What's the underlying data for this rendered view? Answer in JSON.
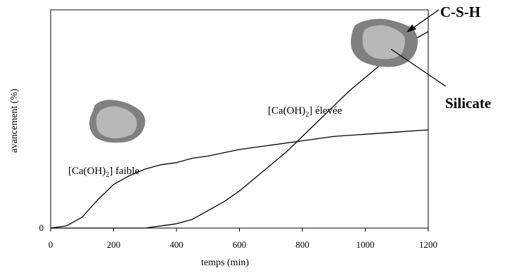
{
  "chart_data": {
    "type": "line",
    "title": "",
    "xlabel": "temps (min)",
    "ylabel": "avancement (%)",
    "xlim": [
      0,
      1200
    ],
    "ylim": [
      0,
      100
    ],
    "x_ticks": [
      "0",
      "200",
      "400",
      "600",
      "800",
      "1000",
      "1200"
    ],
    "y_ticks": [
      "0"
    ],
    "grid": false,
    "series": [
      {
        "name": "[Ca(OH)2] faible",
        "x": [
          0,
          50,
          100,
          150,
          200,
          250,
          300,
          350,
          400,
          450,
          500,
          600,
          700,
          800,
          900,
          1000,
          1100,
          1200
        ],
        "y": [
          0,
          1,
          5,
          13,
          20,
          24,
          27,
          29,
          30,
          32,
          33,
          36,
          38,
          40,
          42,
          43,
          44,
          45
        ]
      },
      {
        "name": "[Ca(OH)2] élevée",
        "x": [
          0,
          100,
          200,
          300,
          400,
          450,
          500,
          550,
          600,
          650,
          700,
          750,
          800,
          850,
          900,
          950,
          1000,
          1050,
          1100,
          1150,
          1200
        ],
        "y": [
          0,
          0,
          0,
          0,
          2,
          4,
          8,
          12,
          17,
          23,
          29,
          35,
          42,
          49,
          56,
          63,
          69,
          75,
          81,
          86,
          90
        ]
      }
    ],
    "annotations": [
      {
        "text": "[Ca(OH)",
        "sub": "2",
        "rest": "] faible"
      },
      {
        "text": "[Ca(OH)",
        "sub": "2",
        "rest": "] élevée"
      },
      {
        "text": "C-S-H"
      },
      {
        "text": "Silicate"
      }
    ],
    "colors": {
      "line": "#000000",
      "particle_shell": "#808080",
      "particle_core": "#b8b8b8"
    }
  }
}
